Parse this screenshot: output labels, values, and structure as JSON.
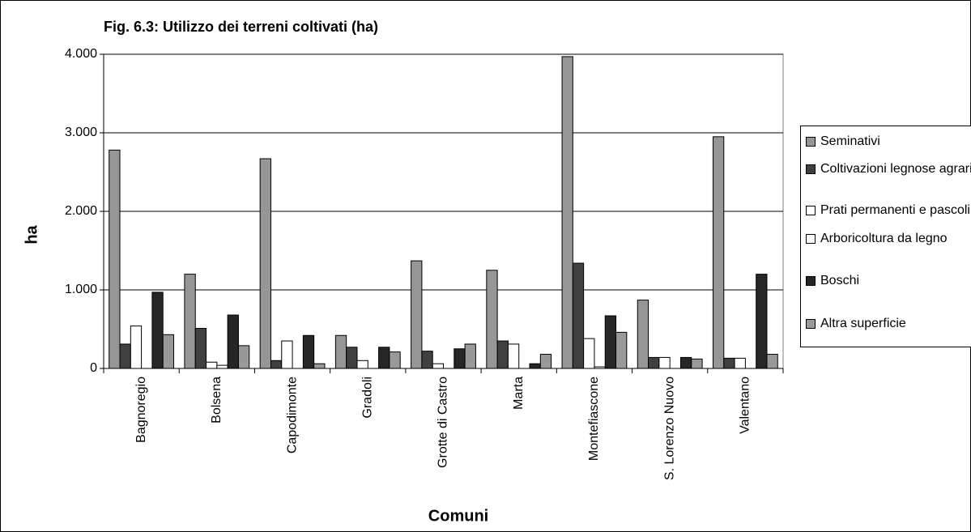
{
  "chart_data": {
    "type": "bar",
    "title": "Fig. 6.3: Utilizzo dei terreni coltivati (ha)",
    "x_label": "Comuni",
    "y_label": "ha",
    "categories": [
      "Bagnoregio",
      "Bolsena",
      "Capodimonte",
      "Gradoli",
      "Grotte di Castro",
      "Marta",
      "Montefiascone",
      "S. Lorenzo Nuovo",
      "Valentano"
    ],
    "series": [
      {
        "name": "Seminativi",
        "color": "#969696",
        "values": [
          2780,
          1200,
          2670,
          420,
          1370,
          1250,
          3970,
          870,
          2950
        ]
      },
      {
        "name": "Coltivazioni legnose agrarie",
        "color": "#404040",
        "values": [
          310,
          510,
          100,
          270,
          220,
          350,
          1340,
          140,
          130
        ]
      },
      {
        "name": "Prati permanenti e pascoli",
        "color": "#ffffff",
        "values": [
          540,
          80,
          350,
          100,
          60,
          310,
          380,
          140,
          130
        ]
      },
      {
        "name": "Arboricoltura da legno",
        "color": "#ffffff",
        "values": [
          0,
          40,
          0,
          0,
          0,
          0,
          20,
          0,
          0
        ]
      },
      {
        "name": "Boschi",
        "color": "#262626",
        "values": [
          970,
          680,
          420,
          270,
          250,
          60,
          670,
          140,
          1200
        ]
      },
      {
        "name": "Altra superficie",
        "color": "#999999",
        "values": [
          430,
          290,
          60,
          210,
          310,
          180,
          460,
          120,
          180
        ]
      }
    ],
    "ylim": [
      0,
      4000
    ],
    "yticks": [
      0,
      {
        "value": 1000,
        "label": "1.000"
      },
      {
        "value": 2000,
        "label": "2.000"
      },
      {
        "value": 3000,
        "label": "3.000"
      },
      {
        "value": 4000,
        "label": "4.000"
      }
    ],
    "grid": true,
    "legend": "right"
  }
}
